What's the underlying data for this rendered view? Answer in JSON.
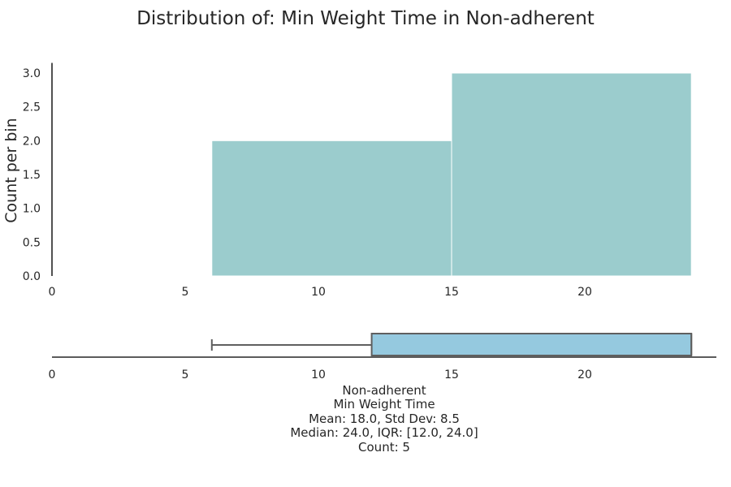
{
  "chart_data": [
    {
      "type": "histogram",
      "title": "Distribution of: Min Weight Time in Non-adherent",
      "ylabel": "Count per bin",
      "xlabel": "",
      "xlim": [
        0,
        25
      ],
      "ylim": [
        0,
        3.15
      ],
      "xticks": [
        0,
        5,
        10,
        15,
        20
      ],
      "yticks": [
        0.0,
        0.5,
        1.0,
        1.5,
        2.0,
        2.5,
        3.0
      ],
      "ytick_labels": [
        "0.0",
        "0.5",
        "1.0",
        "1.5",
        "2.0",
        "2.5",
        "3.0"
      ],
      "bins": [
        {
          "start": 6,
          "end": 15,
          "count": 2
        },
        {
          "start": 15,
          "end": 24,
          "count": 3
        }
      ],
      "bar_color": "#9bcccd",
      "grid": false
    },
    {
      "type": "boxplot",
      "xlim": [
        0,
        25
      ],
      "xticks": [
        0,
        5,
        10,
        15,
        20
      ],
      "whisker_low": 6,
      "q1": 12,
      "median": 24,
      "q3": 24,
      "whisker_high": 24,
      "box_color": "#95c9df",
      "edge_color": "#5f5f5f"
    }
  ],
  "stats": {
    "group": "Non-adherent",
    "variable": "Min Weight Time",
    "mean_line": "Mean: 18.0, Std Dev: 8.5",
    "median_line": "Median: 24.0, IQR: [12.0, 24.0]",
    "count_line": "Count: 5"
  }
}
